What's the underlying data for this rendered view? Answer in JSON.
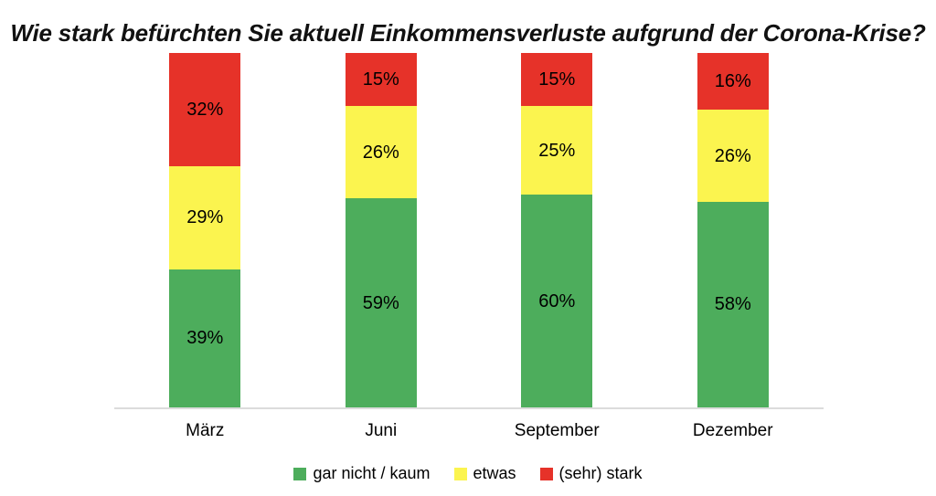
{
  "chart_data": {
    "type": "bar",
    "stacked": true,
    "stacked_total": 100,
    "title": "Wie stark befürchten Sie aktuell Einkommensverluste aufgrund der Corona-Krise?",
    "categories": [
      "März",
      "Juni",
      "September",
      "Dezember"
    ],
    "series": [
      {
        "name": "gar nicht / kaum",
        "color": "#4dad5c",
        "values": [
          39,
          59,
          60,
          58
        ]
      },
      {
        "name": "etwas",
        "color": "#fbf44f",
        "values": [
          29,
          26,
          25,
          26
        ]
      },
      {
        "name": "(sehr) stark",
        "color": "#e63229",
        "values": [
          32,
          15,
          15,
          16
        ]
      }
    ],
    "value_suffix": "%",
    "ylim": [
      0,
      100
    ],
    "grid": false,
    "y_axis_visible": false,
    "legend_position": "bottom",
    "axis_line_color": "#dcdcdc",
    "background_color": "#ffffff",
    "label_color": "#000000"
  }
}
